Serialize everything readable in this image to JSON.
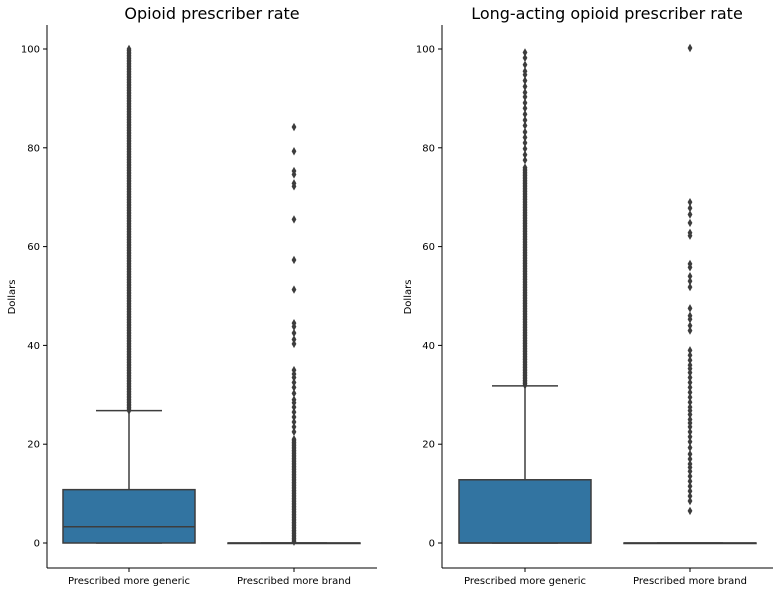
{
  "chart_data": [
    {
      "type": "box",
      "title": "Opioid prescriber rate",
      "ylabel": "Dollars",
      "xlabel": "",
      "ylim": [
        -5,
        105
      ],
      "yticks": [
        0,
        20,
        40,
        60,
        80,
        100
      ],
      "categories": [
        "Prescribed more generic",
        "Prescribed more brand"
      ],
      "box_color": "#3274a1",
      "grid": false,
      "boxes": [
        {
          "category": "Prescribed more generic",
          "q1": 0,
          "median": 3.3,
          "q3": 10.8,
          "whisker_low": 0,
          "whisker_high": 26.8,
          "outlier_band": [
            26.8,
            100
          ],
          "outliers_dense": true
        },
        {
          "category": "Prescribed more brand",
          "q1": 0,
          "median": 0,
          "q3": 0,
          "whisker_low": 0,
          "whisker_high": 0,
          "outlier_band": [
            0,
            21
          ],
          "outliers_dense": true,
          "outliers": [
            84.2,
            79.3,
            75.3,
            74.6,
            72.8,
            72.2,
            65.5,
            57.3,
            51.3,
            44.5,
            43.8,
            42.5,
            41.2,
            40.3,
            35.0,
            34.2,
            33.5,
            32.5,
            31.5,
            30.3,
            29.0,
            28.4,
            27.5,
            26.5,
            25.5,
            24.5,
            23.5,
            22.5
          ]
        }
      ]
    },
    {
      "type": "box",
      "title": "Long-acting opioid prescriber rate",
      "ylabel": "Dollars",
      "xlabel": "",
      "ylim": [
        -5,
        105
      ],
      "yticks": [
        0,
        20,
        40,
        60,
        80,
        100
      ],
      "categories": [
        "Prescribed more generic",
        "Prescribed more brand"
      ],
      "box_color": "#3274a1",
      "grid": false,
      "boxes": [
        {
          "category": "Prescribed more generic",
          "q1": 0,
          "median": 0,
          "q3": 12.8,
          "whisker_low": 0,
          "whisker_high": 31.8,
          "outlier_band": [
            31.8,
            76
          ],
          "outliers_dense": true,
          "outliers": [
            99.3,
            98.2,
            96.8,
            95.5,
            94.8,
            93.6,
            92.4,
            91.2,
            90.3,
            89.1,
            88.0,
            86.8,
            85.6,
            84.5,
            83.2,
            82.1,
            81.0,
            79.8,
            78.6,
            77.5
          ]
        },
        {
          "category": "Prescribed more brand",
          "q1": 0,
          "median": 0,
          "q3": 0,
          "whisker_low": 0,
          "whisker_high": 0,
          "outliers": [
            100.2,
            69.0,
            67.8,
            66.5,
            64.8,
            62.8,
            62.2,
            56.5,
            55.8,
            54.0,
            53.0,
            51.8,
            47.5,
            46.0,
            45.3,
            44.0,
            43.0,
            39.0,
            38.0,
            37.0,
            36.0,
            35.3,
            34.5,
            33.5,
            32.5,
            31.5,
            30.5,
            29.5,
            28.5,
            27.5,
            26.8,
            26.0,
            25.0,
            24.3,
            23.5,
            22.5,
            21.5,
            20.5,
            19.3,
            18.0,
            17.0,
            16.0,
            15.3,
            14.5,
            13.5,
            12.5,
            11.5,
            10.5,
            9.5,
            8.5,
            6.5
          ]
        }
      ]
    }
  ]
}
